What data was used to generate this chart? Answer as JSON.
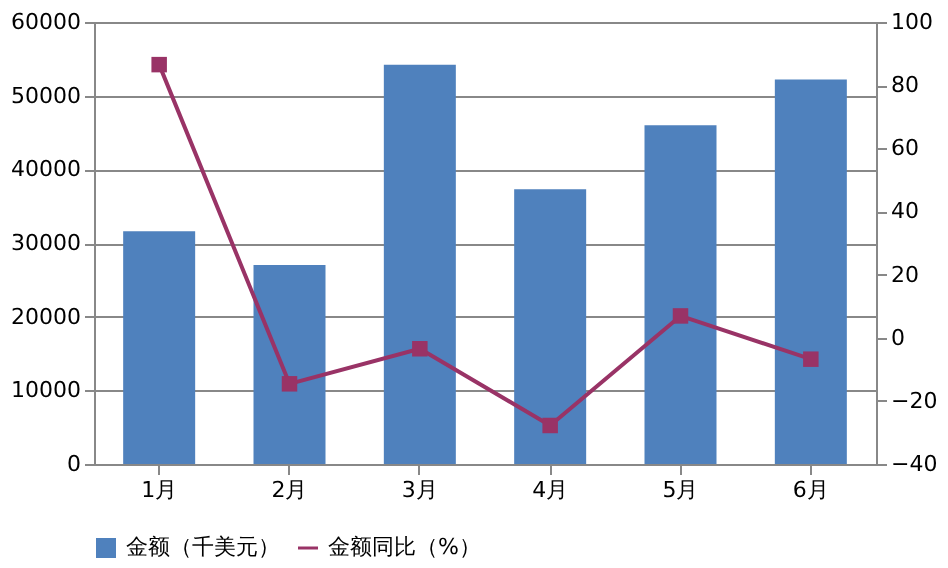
{
  "chart_data": {
    "type": "bar",
    "categories": [
      "1月",
      "2月",
      "3月",
      "4月",
      "5月",
      "6月"
    ],
    "series": [
      {
        "name": "金额（千美元）",
        "color": "#4f81bd",
        "values": [
          31600,
          27000,
          54200,
          37300,
          46000,
          52200
        ]
      },
      {
        "name": "金额同比（%）",
        "type": "line",
        "axis": "y2",
        "color": "#993366",
        "marker": "square",
        "values": [
          86.5,
          -14.6,
          -3.5,
          -27.8,
          6.9,
          -6.8
        ]
      }
    ],
    "ylim": [
      0,
      60000
    ],
    "yticks": [
      0,
      10000,
      20000,
      30000,
      40000,
      50000,
      60000
    ],
    "y2lim": [
      -40,
      100
    ],
    "y2ticks": [
      -40,
      -20,
      0,
      20,
      40,
      60,
      80,
      100
    ],
    "grid": "y",
    "legend": "bottom"
  }
}
